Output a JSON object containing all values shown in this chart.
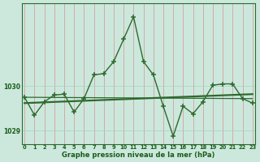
{
  "hours": [
    0,
    1,
    2,
    3,
    4,
    5,
    6,
    7,
    8,
    9,
    10,
    11,
    12,
    13,
    14,
    15,
    16,
    17,
    18,
    19,
    20,
    21,
    22,
    23
  ],
  "pressure": [
    1029.75,
    1029.35,
    1029.65,
    1029.8,
    1029.82,
    1029.42,
    1029.72,
    1030.25,
    1030.28,
    1030.55,
    1031.05,
    1031.55,
    1030.55,
    1030.25,
    1029.55,
    1028.88,
    1029.55,
    1029.38,
    1029.65,
    1030.02,
    1030.05,
    1030.05,
    1029.72,
    1029.62
  ],
  "trend1_x": [
    0,
    23
  ],
  "trend1_y": [
    1029.62,
    1029.82
  ],
  "trend2_x": [
    0,
    23
  ],
  "trend2_y": [
    1029.75,
    1029.72
  ],
  "line_color": "#2d6a2d",
  "bg_color": "#cce8dd",
  "grid_color": "#a8d5c5",
  "text_color": "#1a5c1a",
  "xlabel": "Graphe pression niveau de la mer (hPa)",
  "ylim_min": 1028.7,
  "ylim_max": 1031.85,
  "yticks": [
    1029,
    1030
  ],
  "xticks": [
    0,
    1,
    2,
    3,
    4,
    5,
    6,
    7,
    8,
    9,
    10,
    11,
    12,
    13,
    14,
    15,
    16,
    17,
    18,
    19,
    20,
    21,
    22,
    23
  ],
  "marker": "+",
  "markersize": 4,
  "linewidth": 1.0
}
